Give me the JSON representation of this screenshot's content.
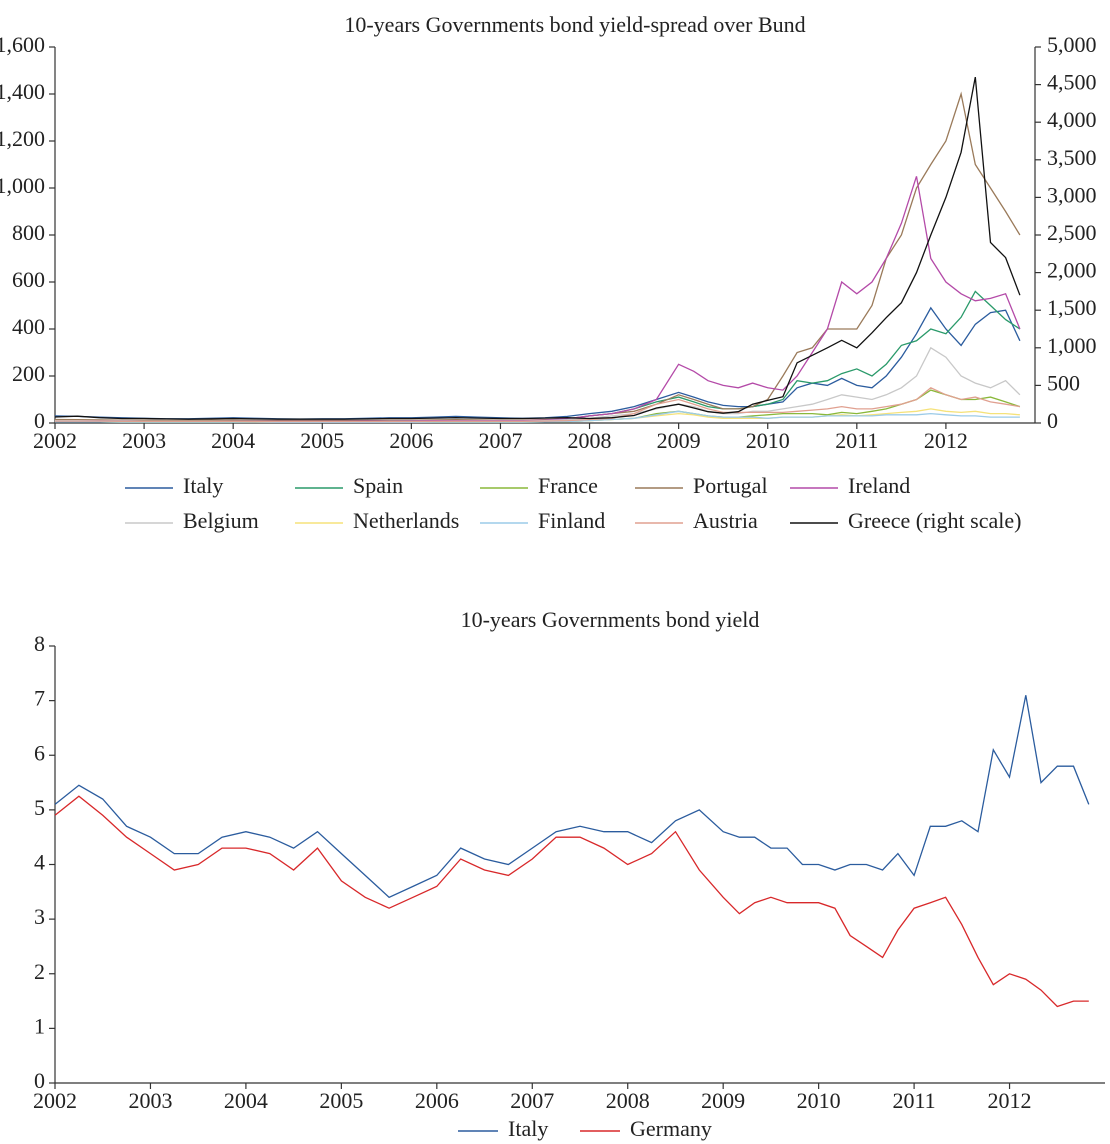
{
  "chart_data": [
    {
      "type": "line",
      "title": "10-years Governments bond yield-spread over Bund",
      "x": [
        2002,
        2002.25,
        2002.5,
        2002.75,
        2003,
        2003.25,
        2003.5,
        2003.75,
        2004,
        2004.25,
        2004.5,
        2004.75,
        2005,
        2005.25,
        2005.5,
        2005.75,
        2006,
        2006.25,
        2006.5,
        2006.75,
        2007,
        2007.25,
        2007.5,
        2007.75,
        2008,
        2008.25,
        2008.5,
        2008.75,
        2009,
        2009.17,
        2009.33,
        2009.5,
        2009.67,
        2009.83,
        2010,
        2010.17,
        2010.33,
        2010.5,
        2010.67,
        2010.83,
        2011,
        2011.17,
        2011.33,
        2011.5,
        2011.67,
        2011.83,
        2012,
        2012.17,
        2012.33,
        2012.5,
        2012.67,
        2012.83
      ],
      "xlim": [
        2002,
        2013
      ],
      "xticks": [
        2002,
        2003,
        2004,
        2005,
        2006,
        2007,
        2008,
        2009,
        2010,
        2011,
        2012
      ],
      "ylim": [
        0,
        1600
      ],
      "yticks": [
        0,
        200,
        400,
        600,
        800,
        {
          "value": 1000,
          "label": "1,000"
        },
        {
          "value": 1200,
          "label": "1,200"
        },
        {
          "value": 1400,
          "label": "1,400"
        },
        {
          "value": 1600,
          "label": "1,600"
        }
      ],
      "y2lim": [
        0,
        5000
      ],
      "y2ticks": [
        0,
        500,
        {
          "value": 1000,
          "label": "1,000"
        },
        {
          "value": 1500,
          "label": "1,500"
        },
        {
          "value": 2000,
          "label": "2,000"
        },
        {
          "value": 2500,
          "label": "2,500"
        },
        {
          "value": 3000,
          "label": "3,000"
        },
        {
          "value": 3500,
          "label": "3,500"
        },
        {
          "value": 4000,
          "label": "4,000"
        },
        {
          "value": 4500,
          "label": "4,500"
        },
        {
          "value": 5000,
          "label": "5,000"
        }
      ],
      "series": [
        {
          "name": "Italy",
          "color": "#2b5c9e",
          "values": [
            30,
            28,
            25,
            22,
            20,
            18,
            18,
            20,
            22,
            20,
            18,
            17,
            18,
            18,
            20,
            22,
            22,
            25,
            28,
            25,
            22,
            20,
            22,
            28,
            40,
            50,
            70,
            100,
            130,
            110,
            90,
            75,
            70,
            70,
            80,
            90,
            150,
            170,
            160,
            190,
            160,
            150,
            200,
            280,
            380,
            490,
            400,
            330,
            420,
            470,
            480,
            350
          ]
        },
        {
          "name": "Spain",
          "color": "#2a9a6a",
          "values": [
            12,
            10,
            10,
            9,
            8,
            8,
            7,
            8,
            8,
            7,
            6,
            6,
            6,
            5,
            5,
            6,
            6,
            7,
            8,
            8,
            8,
            8,
            10,
            15,
            30,
            40,
            60,
            90,
            110,
            90,
            70,
            60,
            60,
            70,
            80,
            100,
            180,
            170,
            180,
            210,
            230,
            200,
            250,
            330,
            350,
            400,
            380,
            450,
            560,
            500,
            440,
            400
          ]
        },
        {
          "name": "France",
          "color": "#8ab83a",
          "values": [
            5,
            5,
            5,
            4,
            4,
            4,
            4,
            4,
            4,
            4,
            3,
            3,
            3,
            3,
            3,
            4,
            4,
            4,
            4,
            4,
            4,
            4,
            5,
            6,
            10,
            15,
            20,
            40,
            50,
            40,
            30,
            25,
            25,
            30,
            35,
            40,
            40,
            40,
            35,
            45,
            40,
            50,
            60,
            80,
            100,
            140,
            120,
            100,
            100,
            110,
            90,
            70
          ]
        },
        {
          "name": "Portugal",
          "color": "#9a7a5a",
          "values": [
            15,
            14,
            13,
            12,
            12,
            11,
            11,
            12,
            12,
            11,
            10,
            10,
            10,
            10,
            11,
            12,
            12,
            13,
            14,
            13,
            12,
            12,
            14,
            18,
            30,
            40,
            50,
            80,
            120,
            100,
            80,
            60,
            60,
            70,
            100,
            200,
            300,
            320,
            400,
            400,
            400,
            500,
            700,
            800,
            1000,
            1100,
            1200,
            1400,
            1100,
            1000,
            900,
            800
          ]
        },
        {
          "name": "Ireland",
          "color": "#b44aa8",
          "values": [
            10,
            10,
            9,
            9,
            8,
            8,
            8,
            8,
            8,
            8,
            7,
            7,
            7,
            7,
            8,
            8,
            9,
            10,
            10,
            10,
            10,
            10,
            12,
            18,
            30,
            40,
            60,
            100,
            250,
            220,
            180,
            160,
            150,
            170,
            150,
            140,
            200,
            300,
            400,
            600,
            550,
            600,
            700,
            850,
            1050,
            700,
            600,
            550,
            520,
            530,
            550,
            400
          ]
        },
        {
          "name": "Belgium",
          "color": "#c8c8c8",
          "values": [
            10,
            10,
            9,
            9,
            8,
            8,
            8,
            8,
            7,
            7,
            6,
            6,
            6,
            6,
            6,
            7,
            7,
            7,
            8,
            8,
            8,
            8,
            10,
            14,
            20,
            30,
            40,
            60,
            80,
            70,
            50,
            40,
            40,
            50,
            50,
            60,
            70,
            80,
            100,
            120,
            110,
            100,
            120,
            150,
            200,
            320,
            280,
            200,
            170,
            150,
            180,
            120
          ]
        },
        {
          "name": "Netherlands",
          "color": "#f5e27a",
          "values": [
            5,
            5,
            5,
            4,
            4,
            4,
            4,
            4,
            4,
            4,
            3,
            3,
            3,
            3,
            3,
            3,
            3,
            4,
            4,
            4,
            4,
            4,
            5,
            6,
            10,
            15,
            20,
            30,
            40,
            35,
            25,
            20,
            20,
            20,
            20,
            25,
            25,
            25,
            30,
            35,
            30,
            35,
            40,
            45,
            50,
            60,
            50,
            45,
            50,
            40,
            40,
            35
          ]
        },
        {
          "name": "Finland",
          "color": "#9ccbe8",
          "values": [
            5,
            5,
            5,
            4,
            4,
            4,
            4,
            4,
            4,
            4,
            3,
            3,
            3,
            3,
            3,
            3,
            3,
            4,
            4,
            4,
            4,
            4,
            5,
            6,
            10,
            15,
            20,
            35,
            50,
            40,
            30,
            25,
            25,
            25,
            20,
            25,
            25,
            25,
            30,
            30,
            30,
            30,
            35,
            35,
            35,
            40,
            35,
            30,
            30,
            25,
            25,
            25
          ]
        },
        {
          "name": "Austria",
          "color": "#e0a090",
          "values": [
            8,
            8,
            8,
            7,
            7,
            7,
            7,
            7,
            7,
            6,
            6,
            6,
            6,
            6,
            6,
            6,
            6,
            7,
            7,
            7,
            7,
            7,
            8,
            10,
            15,
            20,
            40,
            80,
            100,
            80,
            60,
            45,
            45,
            45,
            45,
            45,
            50,
            55,
            60,
            70,
            60,
            60,
            70,
            80,
            100,
            150,
            120,
            100,
            110,
            90,
            80,
            70
          ]
        },
        {
          "name": "Greece (right scale)",
          "color": "#111111",
          "axis": "y2",
          "values": [
            80,
            90,
            70,
            60,
            60,
            55,
            50,
            55,
            60,
            55,
            50,
            50,
            50,
            50,
            55,
            60,
            60,
            65,
            70,
            65,
            60,
            60,
            65,
            70,
            60,
            70,
            100,
            200,
            250,
            200,
            150,
            130,
            150,
            250,
            300,
            350,
            800,
            900,
            1000,
            1100,
            1000,
            1200,
            1400,
            1600,
            2000,
            2500,
            3000,
            3600,
            4600,
            2400,
            2200,
            1700
          ]
        }
      ]
    },
    {
      "type": "line",
      "title": "10-years Governments bond yield",
      "x": [
        2002,
        2002.25,
        2002.5,
        2002.75,
        2003,
        2003.25,
        2003.5,
        2003.75,
        2004,
        2004.25,
        2004.5,
        2004.75,
        2005,
        2005.25,
        2005.5,
        2005.75,
        2006,
        2006.25,
        2006.5,
        2006.75,
        2007,
        2007.25,
        2007.5,
        2007.75,
        2008,
        2008.25,
        2008.5,
        2008.75,
        2009,
        2009.17,
        2009.33,
        2009.5,
        2009.67,
        2009.83,
        2010,
        2010.17,
        2010.33,
        2010.5,
        2010.67,
        2010.83,
        2011,
        2011.17,
        2011.33,
        2011.5,
        2011.67,
        2011.83,
        2012,
        2012.17,
        2012.33,
        2012.5,
        2012.67,
        2012.83
      ],
      "xlim": [
        2002,
        2013
      ],
      "xticks": [
        2002,
        2003,
        2004,
        2005,
        2006,
        2007,
        2008,
        2009,
        2010,
        2011,
        2012
      ],
      "ylim": [
        0,
        8
      ],
      "yticks": [
        0,
        1,
        2,
        3,
        4,
        5,
        6,
        7,
        8
      ],
      "series": [
        {
          "name": "Italy",
          "color": "#2b5c9e",
          "values": [
            5.1,
            5.45,
            5.2,
            4.7,
            4.5,
            4.2,
            4.2,
            4.5,
            4.6,
            4.5,
            4.3,
            4.6,
            4.2,
            3.8,
            3.4,
            3.6,
            3.8,
            4.3,
            4.1,
            4.0,
            4.3,
            4.6,
            4.7,
            4.6,
            4.6,
            4.4,
            4.8,
            5.0,
            4.6,
            4.5,
            4.5,
            4.3,
            4.3,
            4.0,
            4.0,
            3.9,
            4.0,
            4.0,
            3.9,
            4.2,
            3.8,
            4.7,
            4.7,
            4.8,
            4.6,
            6.1,
            5.6,
            7.1,
            5.5,
            5.8,
            5.8,
            5.1
          ]
        },
        {
          "name": "Germany",
          "color": "#d8282a",
          "values": [
            4.9,
            5.25,
            4.9,
            4.5,
            4.2,
            3.9,
            4.0,
            4.3,
            4.3,
            4.2,
            3.9,
            4.3,
            3.7,
            3.4,
            3.2,
            3.4,
            3.6,
            4.1,
            3.9,
            3.8,
            4.1,
            4.5,
            4.5,
            4.3,
            4.0,
            4.2,
            4.6,
            3.9,
            3.4,
            3.1,
            3.3,
            3.4,
            3.3,
            3.3,
            3.3,
            3.2,
            2.7,
            2.5,
            2.3,
            2.8,
            3.2,
            3.3,
            3.4,
            2.9,
            2.3,
            1.8,
            2.0,
            1.9,
            1.7,
            1.4,
            1.5,
            1.5
          ]
        }
      ]
    }
  ]
}
